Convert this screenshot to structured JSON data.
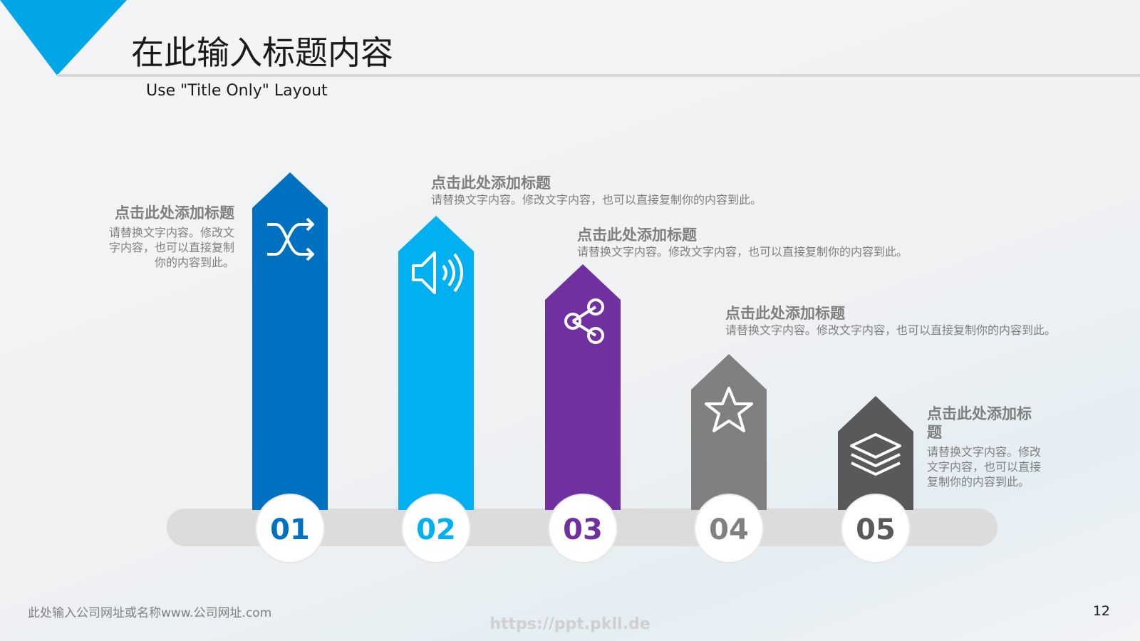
{
  "header": {
    "title": "在此输入标题内容",
    "subtitle": "Use \"Title Only\" Layout"
  },
  "items": [
    {
      "number": "01",
      "heading": "点击此处添加标题",
      "body": "请替换文字内容。修改文字内容，也可以直接复制你的内容到此。"
    },
    {
      "number": "02",
      "heading": "点击此处添加标题",
      "body": "请替换文字内容。修改文字内容，也可以直接复制你的内容到此。"
    },
    {
      "number": "03",
      "heading": "点击此处添加标题",
      "body": "请替换文字内容。修改文字内容，也可以直接复制你的内容到此。"
    },
    {
      "number": "04",
      "heading": "点击此处添加标题",
      "body": "请替换文字内容。修改文字内容，也可以直接复制你的内容到此。"
    },
    {
      "number": "05",
      "heading": "点击此处添加标题",
      "body": "请替换文字内容。修改文字内容，也可以直接复制你的内容到此。"
    }
  ],
  "footer": {
    "company": "此处输入公司网址或名称www.公司网址.com",
    "watermark": "https://ppt.pkll.de",
    "page": "12"
  }
}
